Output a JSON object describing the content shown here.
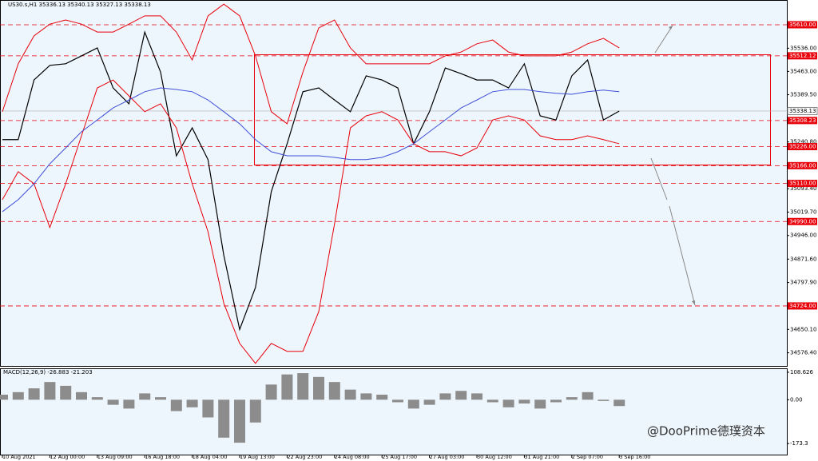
{
  "header": "US30.s,H1  35336.13 35340.13 35327.13 35338.13",
  "watermark": "@DooPrime德璞资本",
  "chart_data": [
    {
      "type": "line",
      "categories": [
        "10 Aug 2021",
        null,
        null,
        "12 Aug 00:00",
        null,
        null,
        "13 Aug 09:00",
        null,
        null,
        "16 Aug 18:00",
        null,
        null,
        "18 Aug 04:00",
        null,
        null,
        "19 Aug 13:00",
        null,
        null,
        "22 Aug 23:00",
        null,
        null,
        "24 Aug 08:00",
        null,
        null,
        "25 Aug 17:00",
        null,
        null,
        "27 Aug 03:00",
        null,
        null,
        "30 Aug 12:00",
        null,
        null,
        "31 Aug 21:00",
        null,
        null,
        "2 Sep 07:00",
        null,
        null,
        "3 Sep 16:00"
      ],
      "series": [
        {
          "color": "#000000",
          "values": [
            35248,
            35248,
            35436,
            35482,
            35487,
            35512,
            35537,
            35411,
            35361,
            35587,
            35461,
            35197,
            35285,
            35185,
            34883,
            34650,
            34782,
            35084,
            35235,
            35399,
            35411,
            35373,
            35336,
            35449,
            35436,
            35411,
            35235,
            35336,
            35474,
            35456,
            35436,
            35436,
            35411,
            35487,
            35323,
            35310,
            35449,
            35499,
            35310,
            35338
          ]
        },
        {
          "color": "#e8000b",
          "values": [
            35336,
            35487,
            35575,
            35612,
            35625,
            35612,
            35587,
            35587,
            35612,
            35638,
            35638,
            35587,
            35499,
            35638,
            35675,
            35638,
            35512,
            35336,
            35298,
            35461,
            35600,
            35625,
            35537,
            35487,
            35487,
            35487,
            35487,
            35487,
            35512,
            35524,
            35550,
            35562,
            35524,
            35512,
            35512,
            35512,
            35524,
            35550,
            35567,
            35537
          ]
        },
        {
          "color": "#e8000b",
          "values": [
            35059,
            35147,
            35109,
            34971,
            35109,
            35260,
            35411,
            35436,
            35386,
            35336,
            35361,
            35285,
            35109,
            34958,
            34732,
            34606,
            34543,
            34606,
            34581,
            34581,
            34706,
            34983,
            35285,
            35323,
            35336,
            35310,
            35235,
            35210,
            35210,
            35197,
            35222,
            35310,
            35323,
            35310,
            35260,
            35248,
            35248,
            35260,
            35248,
            35235
          ]
        },
        {
          "color": "#3f4fd8",
          "values": [
            35021,
            35059,
            35109,
            35172,
            35222,
            35273,
            35310,
            35348,
            35373,
            35399,
            35411,
            35406,
            35399,
            35373,
            35336,
            35298,
            35248,
            35210,
            35197,
            35197,
            35197,
            35192,
            35185,
            35185,
            35192,
            35210,
            35235,
            35273,
            35310,
            35348,
            35373,
            35399,
            35406,
            35406,
            35399,
            35394,
            35391,
            35399,
            35404,
            35399
          ]
        }
      ],
      "ylim": [
        34535,
        35688
      ],
      "yticks": [
        {
          "value": 35536,
          "label": "35536.00"
        },
        {
          "value": 35463,
          "label": "35463.00"
        },
        {
          "value": 35389.5,
          "label": "35389.50"
        },
        {
          "value": 35240.8,
          "label": "35240.80"
        },
        {
          "value": 35093.4,
          "label": "35093.40"
        },
        {
          "value": 35019.7,
          "label": "35019.70"
        },
        {
          "value": 34946,
          "label": "34946.00"
        },
        {
          "value": 34871.6,
          "label": "34871.60"
        },
        {
          "value": 34797.9,
          "label": "34797.90"
        },
        {
          "value": 34650.1,
          "label": "34650.10"
        },
        {
          "value": 34576.4,
          "label": "34576.40"
        }
      ],
      "levels": [
        {
          "value": 35610,
          "label": "35610.00"
        },
        {
          "value": 35512.12,
          "label": "35512.12"
        },
        {
          "value": 35308.23,
          "label": "35308.23"
        },
        {
          "value": 35226,
          "label": "35226.00"
        },
        {
          "value": 35166,
          "label": "35166.00"
        },
        {
          "value": 35110,
          "label": "35110.00"
        },
        {
          "value": 34990,
          "label": "34990.00"
        },
        {
          "value": 34724,
          "label": "34724.00"
        }
      ],
      "level_color": "#e8000b",
      "current_price": 35338.13
    },
    {
      "type": "bar",
      "title": "MACD(12,26,9) -26.883 -21.203",
      "color": "#8c8c8c",
      "values": [
        20,
        30,
        45,
        70,
        55,
        30,
        10,
        -20,
        -35,
        25,
        10,
        -45,
        -30,
        -70,
        -150,
        -170,
        -90,
        60,
        100,
        105,
        90,
        70,
        40,
        25,
        20,
        -10,
        -35,
        -20,
        25,
        35,
        25,
        -10,
        -30,
        -15,
        -35,
        -10,
        10,
        30,
        -5,
        -25
      ],
      "ylim": [
        -217,
        121
      ],
      "yticks": [
        108.626,
        {
          "value": 0,
          "label": "0.00"
        },
        -173.3
      ]
    }
  ]
}
